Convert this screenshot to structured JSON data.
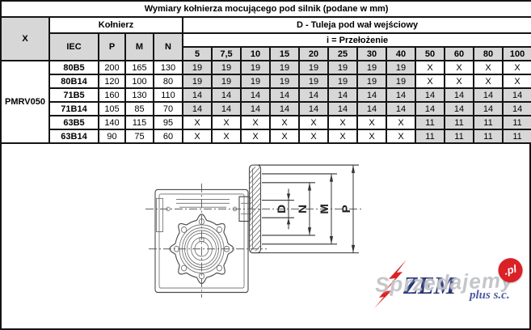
{
  "table": {
    "title": "Wymiary kołnierza mocującego pod silnik (podane w mm)",
    "col_x_header": "X",
    "group_kolnierz": "Kołnierz",
    "group_tuleja": "D - Tuleja pod wał wejściowy",
    "group_ratio": "i = Przełożenie",
    "sub_headers": [
      "IEC",
      "P",
      "M",
      "N"
    ],
    "ratio_headers": [
      "5",
      "7,5",
      "10",
      "15",
      "20",
      "25",
      "30",
      "40",
      "50",
      "60",
      "80",
      "100"
    ],
    "model": "PMRV050",
    "rows": [
      {
        "iec": "80B5",
        "p": "200",
        "m": "165",
        "n": "130",
        "tuleja": [
          "19",
          "19",
          "19",
          "19",
          "19",
          "19",
          "19",
          "19",
          "X",
          "X",
          "X",
          "X"
        ]
      },
      {
        "iec": "80B14",
        "p": "120",
        "m": "100",
        "n": "80",
        "tuleja": [
          "19",
          "19",
          "19",
          "19",
          "19",
          "19",
          "19",
          "19",
          "X",
          "X",
          "X",
          "X"
        ]
      },
      {
        "iec": "71B5",
        "p": "160",
        "m": "130",
        "n": "110",
        "tuleja": [
          "14",
          "14",
          "14",
          "14",
          "14",
          "14",
          "14",
          "14",
          "14",
          "14",
          "14",
          "14"
        ]
      },
      {
        "iec": "71B14",
        "p": "105",
        "m": "85",
        "n": "70",
        "tuleja": [
          "14",
          "14",
          "14",
          "14",
          "14",
          "14",
          "14",
          "14",
          "14",
          "14",
          "14",
          "14"
        ]
      },
      {
        "iec": "63B5",
        "p": "140",
        "m": "115",
        "n": "95",
        "tuleja": [
          "X",
          "X",
          "X",
          "X",
          "X",
          "X",
          "X",
          "X",
          "11",
          "11",
          "11",
          "11"
        ]
      },
      {
        "iec": "63B14",
        "p": "90",
        "m": "75",
        "n": "60",
        "tuleja": [
          "X",
          "X",
          "X",
          "X",
          "X",
          "X",
          "X",
          "X",
          "11",
          "11",
          "11",
          "11"
        ]
      }
    ]
  },
  "drawing": {
    "dim_labels": [
      "D",
      "N",
      "M",
      "P"
    ]
  },
  "logo": {
    "name": "ZEM",
    "suffix": "plus s.c."
  },
  "watermark": {
    "text": "Sprzedajemy",
    "tld": ".pl"
  },
  "colors": {
    "header_gray": "#d7d7d7",
    "logo_navy": "#22306f",
    "logo_red": "#da2128"
  }
}
